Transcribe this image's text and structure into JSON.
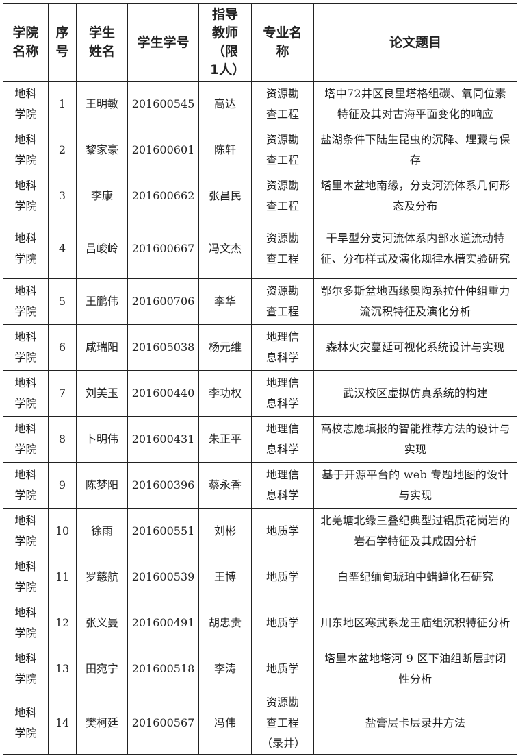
{
  "headers": [
    "学院名称",
    "序号",
    "学生姓名",
    "学生学号",
    "指导教师（限1人）",
    "专业名称",
    "论文题目"
  ],
  "rows": [
    {
      "college": "地科学院",
      "no": "1",
      "name": "王明敏",
      "id": "201600545",
      "advisor": "高达",
      "major": "资源勘查工程",
      "title": "塔中72井区良里塔格组碳、氧同位素特征及其对古海平面变化的响应"
    },
    {
      "college": "地科学院",
      "no": "2",
      "name": "黎家豪",
      "id": "201600601",
      "advisor": "陈轩",
      "major": "资源勘查工程",
      "title": "盐湖条件下陆生昆虫的沉降、埋藏与保存"
    },
    {
      "college": "地科学院",
      "no": "3",
      "name": "李康",
      "id": "201600662",
      "advisor": "张昌民",
      "major": "资源勘查工程",
      "title": "塔里木盆地南缘，分支河流体系几何形态及分布"
    },
    {
      "college": "地科学院",
      "no": "4",
      "name": "吕峻岭",
      "id": "201600667",
      "advisor": "冯文杰",
      "major": "资源勘查工程",
      "title": "干旱型分支河流体系内部水道流动特征、分布样式及演化规律水槽实验研究"
    },
    {
      "college": "地科学院",
      "no": "5",
      "name": "王鹏伟",
      "id": "201600706",
      "advisor": "李华",
      "major": "资源勘查工程",
      "title": "鄂尔多斯盆地西缘奥陶系拉什仲组重力流沉积特征及演化分析"
    },
    {
      "college": "地科学院",
      "no": "6",
      "name": "咸瑞阳",
      "id": "201605038",
      "advisor": "杨元维",
      "major": "地理信息科学",
      "title": "森林火灾蔓延可视化系统设计与实现"
    },
    {
      "college": "地科学院",
      "no": "7",
      "name": "刘美玉",
      "id": "201600440",
      "advisor": "李功权",
      "major": "地理信息科学",
      "title": "武汉校区虚拟仿真系统的构建"
    },
    {
      "college": "地科学院",
      "no": "8",
      "name": "卜明伟",
      "id": "201600431",
      "advisor": "朱正平",
      "major": "地理信息科学",
      "title": "高校志愿填报的智能推荐方法的设计与实现"
    },
    {
      "college": "地科学院",
      "no": "9",
      "name": "陈梦阳",
      "id": "201600396",
      "advisor": "蔡永香",
      "major": "地理信息科学",
      "title": "基于开源平台的 web 专题地图的设计与实现"
    },
    {
      "college": "地科学院",
      "no": "10",
      "name": "徐雨",
      "id": "201600551",
      "advisor": "刘彬",
      "major": "地质学",
      "title": "北羌塘北缘三叠纪典型过铝质花岗岩的岩石学特征及其成因分析"
    },
    {
      "college": "地科学院",
      "no": "11",
      "name": "罗慈航",
      "id": "201600539",
      "advisor": "王博",
      "major": "地质学",
      "title": "白垩纪缅甸琥珀中蜡蝉化石研究"
    },
    {
      "college": "地科学院",
      "no": "12",
      "name": "张义曼",
      "id": "201600491",
      "advisor": "胡忠贵",
      "major": "地质学",
      "title": "川东地区寒武系龙王庙组沉积特征分析"
    },
    {
      "college": "地科学院",
      "no": "13",
      "name": "田宛宁",
      "id": "201600518",
      "advisor": "李涛",
      "major": "地质学",
      "title": "塔里木盆地塔河 9 区下油组断层封闭性分析"
    },
    {
      "college": "地科学院",
      "no": "14",
      "name": "樊柯廷",
      "id": "201600567",
      "advisor": "冯伟",
      "major": "资源勘查工程（录井）",
      "title": "盐膏层卡层录井方法"
    }
  ]
}
